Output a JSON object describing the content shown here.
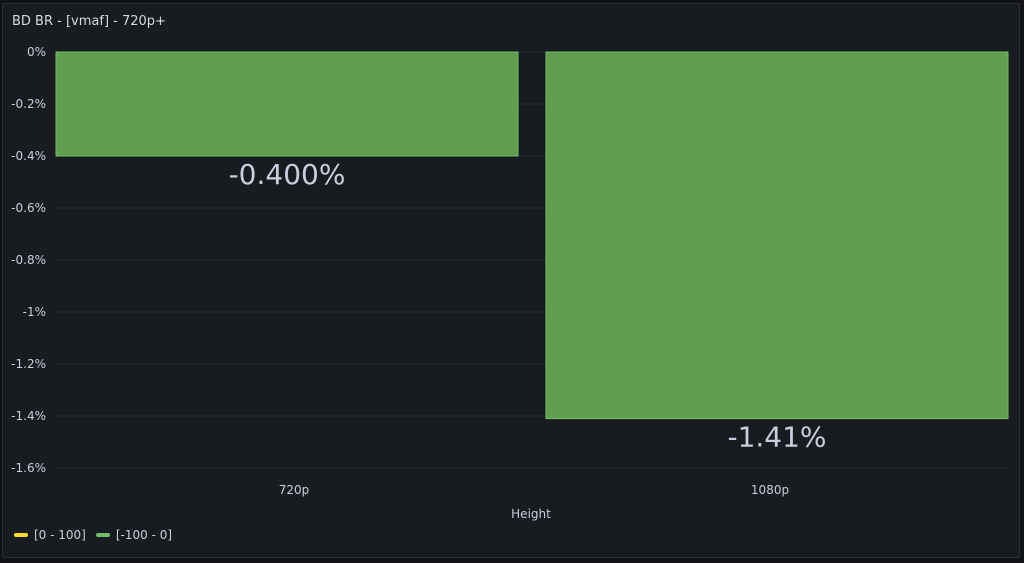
{
  "panel": {
    "title": "BD BR - [vmaf] - 720p+"
  },
  "legend": [
    {
      "label": "[0 - 100]",
      "color": "#fade2a"
    },
    {
      "label": "[-100 - 0]",
      "color": "#73bf69"
    }
  ],
  "chart_data": {
    "type": "bar",
    "title": "BD BR - [vmaf] - 720p+",
    "xlabel": "Height",
    "ylabel": "",
    "categories": [
      "720p",
      "1080p"
    ],
    "series": [
      {
        "values": [
          -0.4,
          -1.41
        ],
        "color": "#629e51"
      }
    ],
    "value_labels": [
      "-0.400%",
      "-1.41%"
    ],
    "ylim": [
      -1.6,
      0
    ],
    "yticks": [
      0,
      -0.2,
      -0.4,
      -0.6,
      -0.8,
      -1,
      -1.2,
      -1.4,
      -1.6
    ],
    "ytick_labels": [
      "0%",
      "-0.2%",
      "-0.4%",
      "-0.6%",
      "-0.8%",
      "-1%",
      "-1.2%",
      "-1.4%",
      "-1.6%"
    ],
    "grid": true,
    "legend_position": "bottom-left"
  }
}
